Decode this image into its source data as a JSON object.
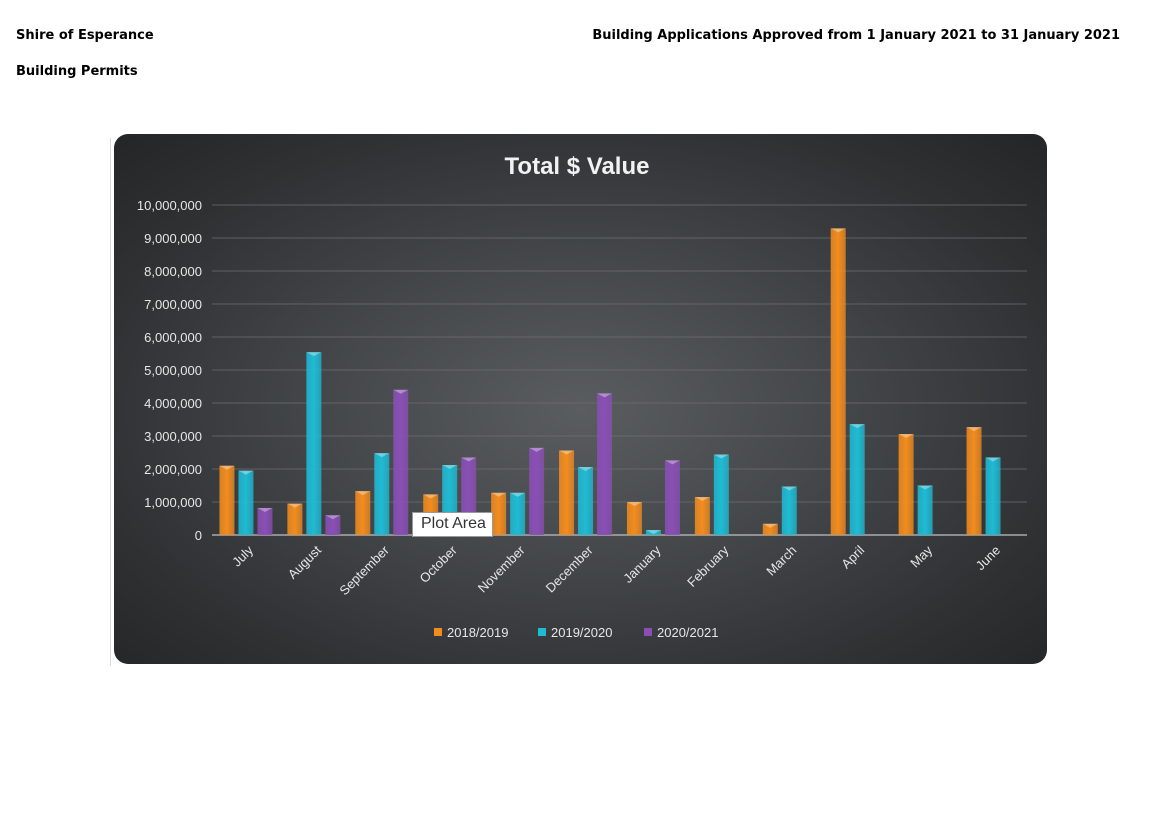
{
  "page": {
    "organisation": "Shire of Esperance",
    "subtitle": "Building Permits",
    "report_title": "Building Applications Approved from 1 January 2021 to 31 January 2021",
    "tooltip": "Plot Area"
  },
  "colors": {
    "series": [
      "#f28c1f",
      "#1fbbd4",
      "#8a4fb6"
    ],
    "text": "#e6e6e6",
    "gridline": "#6c6e70"
  },
  "chart_data": {
    "type": "bar",
    "title": "Total $ Value",
    "xlabel": "",
    "ylabel": "",
    "ylim": [
      0,
      10000000
    ],
    "yticks": [
      0,
      1000000,
      2000000,
      3000000,
      4000000,
      5000000,
      6000000,
      7000000,
      8000000,
      9000000,
      10000000
    ],
    "ytick_labels": [
      "0",
      "1,000,000",
      "2,000,000",
      "3,000,000",
      "4,000,000",
      "5,000,000",
      "6,000,000",
      "7,000,000",
      "8,000,000",
      "9,000,000",
      "10,000,000"
    ],
    "grid": true,
    "legend_position": "bottom",
    "categories": [
      "July",
      "August",
      "September",
      "October",
      "November",
      "December",
      "January",
      "February",
      "March",
      "April",
      "May",
      "June"
    ],
    "series": [
      {
        "name": "2018/2019",
        "values": [
          2100000,
          950000,
          1330000,
          1230000,
          1280000,
          2560000,
          1000000,
          1150000,
          340000,
          9290000,
          3060000,
          3270000
        ]
      },
      {
        "name": "2019/2020",
        "values": [
          1950000,
          5540000,
          2480000,
          2120000,
          1280000,
          2060000,
          150000,
          2440000,
          1470000,
          3360000,
          1500000,
          2350000
        ]
      },
      {
        "name": "2020/2021",
        "values": [
          820000,
          600000,
          4400000,
          2350000,
          2640000,
          4290000,
          2260000,
          null,
          null,
          null,
          null,
          null
        ]
      }
    ]
  }
}
